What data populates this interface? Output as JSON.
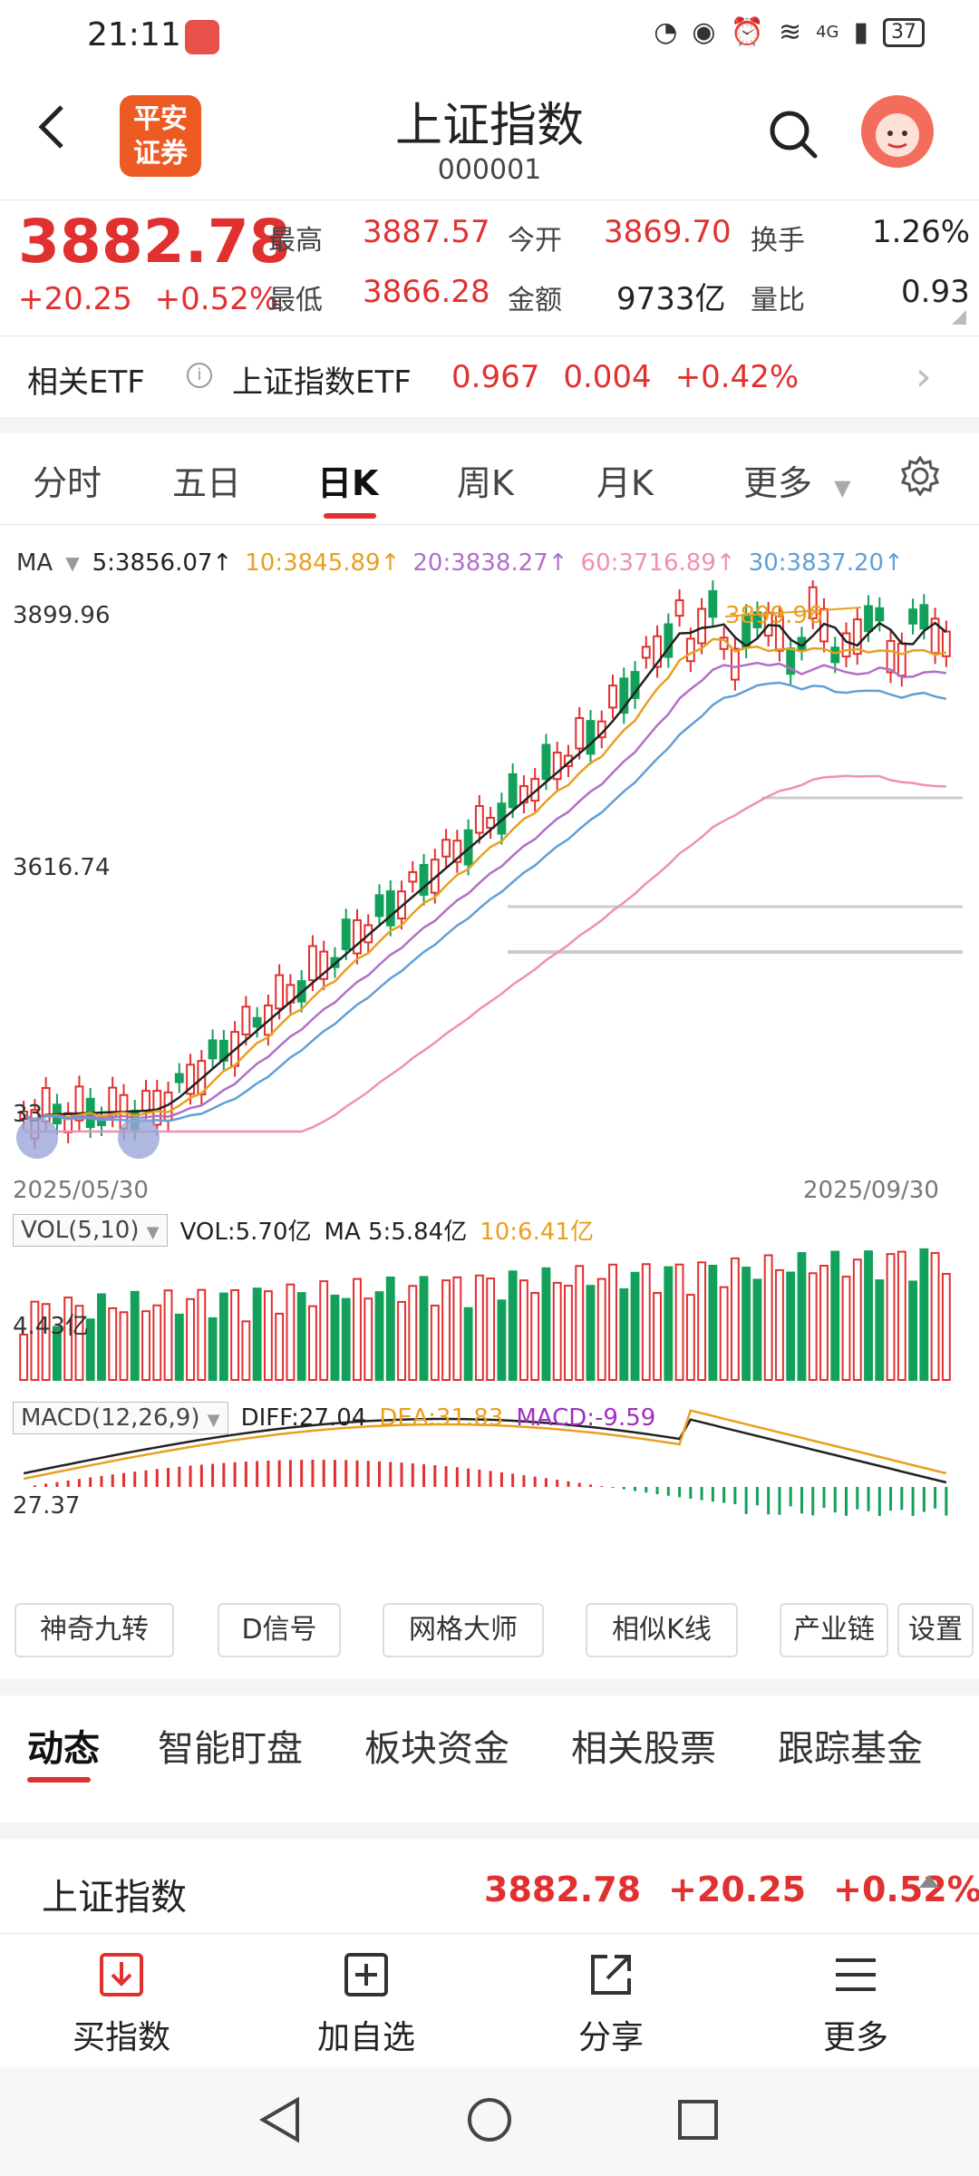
{
  "status": {
    "time": "21:11",
    "signal": "4G",
    "battery": "37"
  },
  "header": {
    "brand": "平安\n证券",
    "brand_top": "平安",
    "brand_bottom": "证券",
    "title": "上证指数",
    "code": "000001"
  },
  "quote": {
    "price": "3882.78",
    "change": "+20.25",
    "change_pct": "+0.52%",
    "high_label": "最高",
    "high": "3887.57",
    "open_label": "今开",
    "open": "3869.70",
    "turnover_label": "换手",
    "turnover": "1.26%",
    "low_label": "最低",
    "low": "3866.28",
    "amount_label": "金额",
    "amount": "9733亿",
    "volratio_label": "量比",
    "volratio": "0.93"
  },
  "etf": {
    "label": "相关ETF",
    "name": "上证指数ETF",
    "price": "0.967",
    "change": "0.004",
    "pct": "+0.42%"
  },
  "period_tabs": [
    {
      "label": "分时"
    },
    {
      "label": "五日"
    },
    {
      "label": "日K"
    },
    {
      "label": "周K"
    },
    {
      "label": "月K"
    },
    {
      "label": "更多"
    }
  ],
  "ma": {
    "label": "MA",
    "ma5": "5:3856.07↑",
    "ma10": "10:3845.89↑",
    "ma20": "20:3838.27↑",
    "ma60": "60:3716.89↑",
    "ma30": "30:3837.20↑"
  },
  "chart": {
    "y_top": "3899.96",
    "y_mid": "3616.74",
    "peak_label": "3899.96",
    "y_low_partial": "33",
    "date_start": "2025/05/30",
    "date_end": "2025/09/30"
  },
  "vol": {
    "tag": "VOL(5,10)",
    "vol": "VOL:5.70亿",
    "ma5": "MA 5:5.84亿",
    "ma10": "10:6.41亿",
    "y": "4.43亿"
  },
  "macd": {
    "tag": "MACD(12,26,9)",
    "diff": "DIFF:27.04",
    "dea": "DEA:31.83",
    "macd": "MACD:-9.59",
    "y": "27.37"
  },
  "tools": [
    "神奇九转",
    "D信号",
    "网格大师",
    "相似K线",
    "产业链",
    "设置"
  ],
  "section_tabs": [
    "动态",
    "智能盯盘",
    "板块资金",
    "相关股票",
    "跟踪基金"
  ],
  "summary": {
    "name": "上证指数",
    "price": "3882.78",
    "change": "+20.25",
    "pct": "+0.52%"
  },
  "bottom_nav": [
    {
      "label": "买指数",
      "icon": "download-icon"
    },
    {
      "label": "加自选",
      "icon": "add-icon"
    },
    {
      "label": "分享",
      "icon": "share-icon"
    },
    {
      "label": "更多",
      "icon": "menu-icon"
    }
  ],
  "colors": {
    "up": "#e03130",
    "down": "#13a05a",
    "ma5": "#222222",
    "ma10": "#e8a020",
    "ma20": "#b070c8",
    "ma60": "#f090b0",
    "ma30": "#60a0d8"
  }
}
